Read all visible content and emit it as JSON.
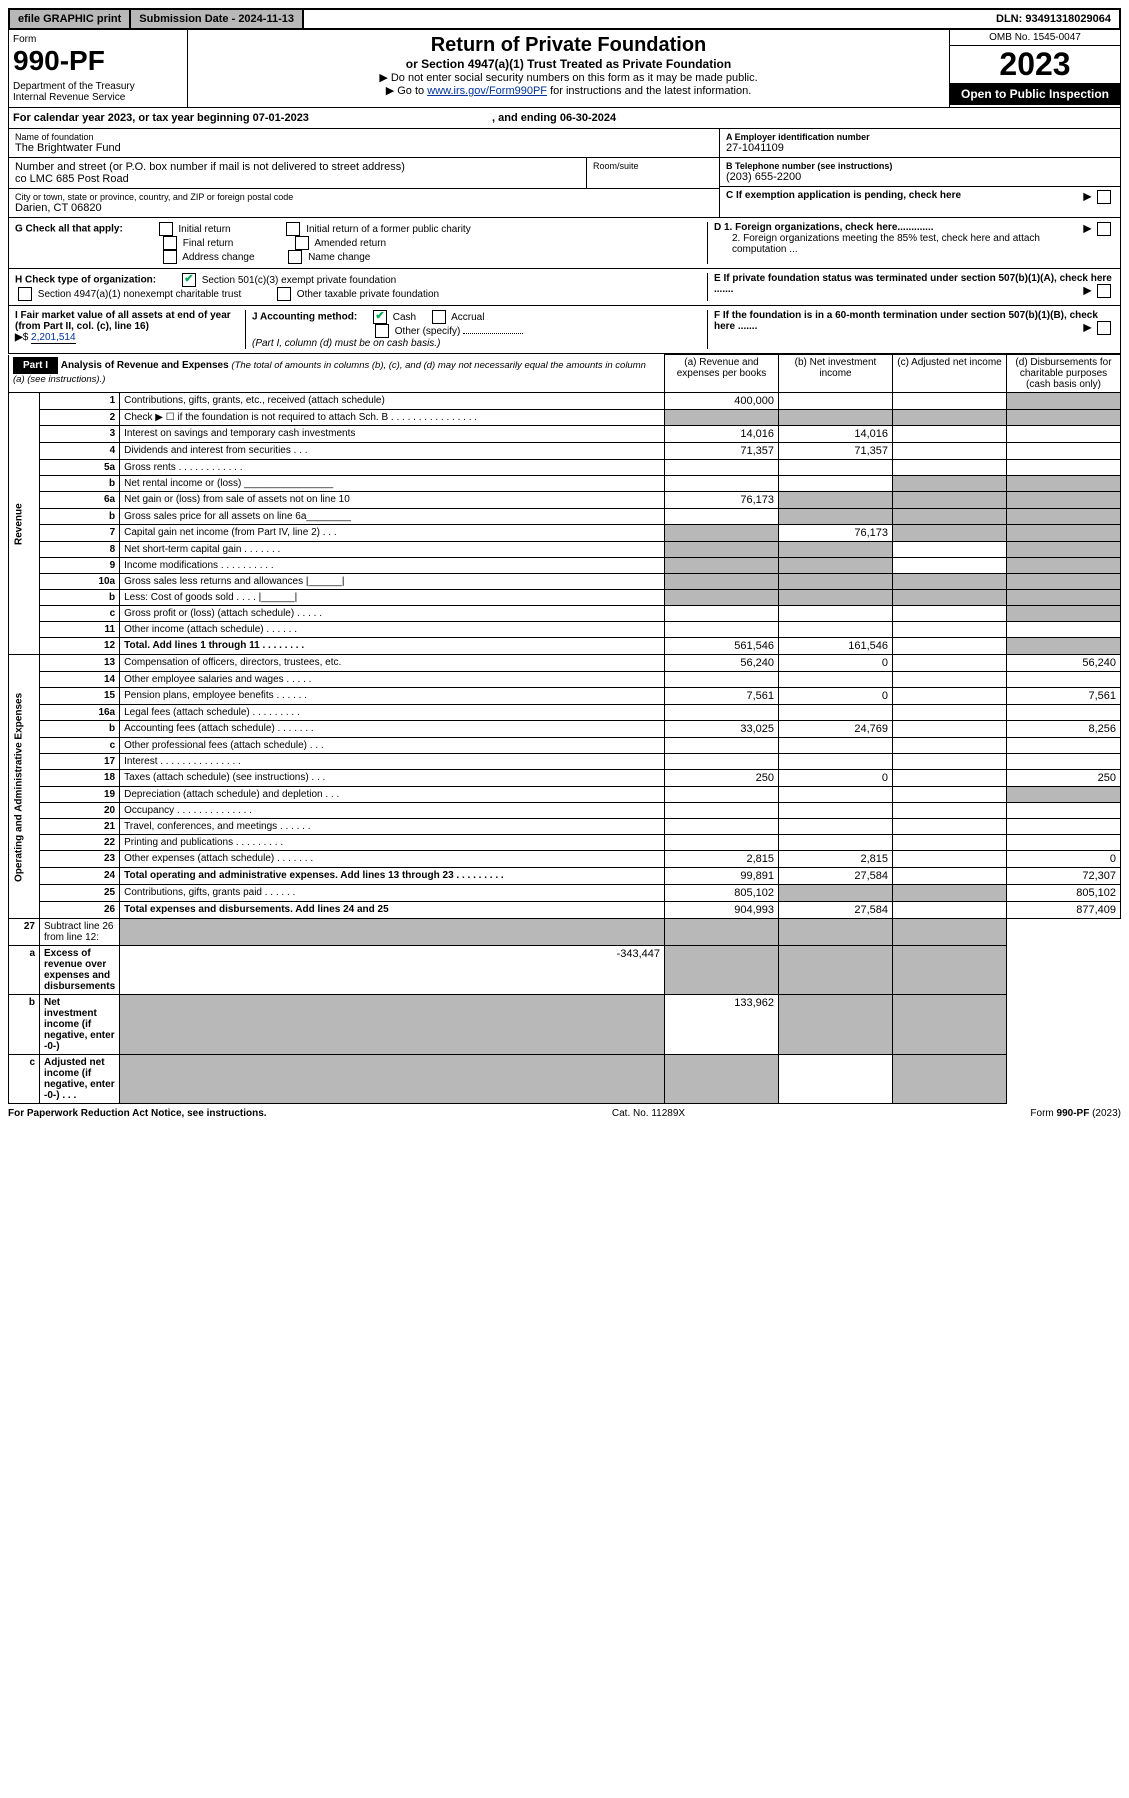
{
  "topbar": {
    "efile": "efile GRAPHIC print",
    "submission": "Submission Date - 2024-11-13",
    "dln": "DLN: 93491318029064"
  },
  "header": {
    "form_label": "Form",
    "form_number": "990-PF",
    "dept": "Department of the Treasury\nInternal Revenue Service",
    "title": "Return of Private Foundation",
    "subtitle": "or Section 4947(a)(1) Trust Treated as Private Foundation",
    "instr1": "▶ Do not enter social security numbers on this form as it may be made public.",
    "instr2_pre": "▶ Go to ",
    "instr2_link": "www.irs.gov/Form990PF",
    "instr2_post": " for instructions and the latest information.",
    "omb": "OMB No. 1545-0047",
    "year": "2023",
    "open": "Open to Public Inspection"
  },
  "calendar": {
    "text_pre": "For calendar year 2023, or tax year beginning ",
    "begin": "07-01-2023",
    "text_mid": " , and ending ",
    "end": "06-30-2024"
  },
  "foundation": {
    "name_lbl": "Name of foundation",
    "name": "The Brightwater Fund",
    "addr_lbl": "Number and street (or P.O. box number if mail is not delivered to street address)",
    "addr": "co LMC 685 Post Road",
    "room_lbl": "Room/suite",
    "city_lbl": "City or town, state or province, country, and ZIP or foreign postal code",
    "city": "Darien, CT  06820",
    "ein_lbl": "A Employer identification number",
    "ein": "27-1041109",
    "phone_lbl": "B Telephone number (see instructions)",
    "phone": "(203) 655-2200",
    "c_lbl": "C If exemption application is pending, check here",
    "d1": "D 1. Foreign organizations, check here.............",
    "d2": "2. Foreign organizations meeting the 85% test, check here and attach computation ...",
    "e_lbl": "E  If private foundation status was terminated under section 507(b)(1)(A), check here .......",
    "f_lbl": "F  If the foundation is in a 60-month termination under section 507(b)(1)(B), check here ......."
  },
  "checks": {
    "g_lbl": "G Check all that apply:",
    "g_opts": [
      "Initial return",
      "Final return",
      "Address change",
      "Initial return of a former public charity",
      "Amended return",
      "Name change"
    ],
    "h_lbl": "H Check type of organization:",
    "h1": "Section 501(c)(3) exempt private foundation",
    "h2": "Section 4947(a)(1) nonexempt charitable trust",
    "h3": "Other taxable private foundation",
    "i_lbl": "I Fair market value of all assets at end of year (from Part II, col. (c), line 16)",
    "i_val": "2,201,514",
    "j_lbl": "J Accounting method:",
    "j_cash": "Cash",
    "j_accrual": "Accrual",
    "j_other": "Other (specify)",
    "j_note": "(Part I, column (d) must be on cash basis.)"
  },
  "part1": {
    "label": "Part I",
    "title": "Analysis of Revenue and Expenses",
    "subtitle": "(The total of amounts in columns (b), (c), and (d) may not necessarily equal the amounts in column (a) (see instructions).)",
    "cols": {
      "a": "(a)   Revenue and expenses per books",
      "b": "(b)   Net investment income",
      "c": "(c)   Adjusted net income",
      "d": "(d)   Disbursements for charitable purposes (cash basis only)"
    }
  },
  "revenue_label": "Revenue",
  "expenses_label": "Operating and Administrative Expenses",
  "rows": [
    {
      "ln": "1",
      "lbl": "Contributions, gifts, grants, etc., received (attach schedule)",
      "a": "400,000",
      "d_shade": true
    },
    {
      "ln": "2",
      "lbl": "Check ▶ ☐ if the foundation is not required to attach Sch. B   .  .  .  .  .  .  .  .  .  .  .  .  .  .  .  .",
      "all_shade": true
    },
    {
      "ln": "3",
      "lbl": "Interest on savings and temporary cash investments",
      "a": "14,016",
      "b": "14,016"
    },
    {
      "ln": "4",
      "lbl": "Dividends and interest from securities   .   .   .",
      "a": "71,357",
      "b": "71,357"
    },
    {
      "ln": "5a",
      "lbl": "Gross rents   .   .   .   .   .   .   .   .   .   .   .   ."
    },
    {
      "ln": "b",
      "lbl": "Net rental income or (loss) ________________",
      "cd_shade": true
    },
    {
      "ln": "6a",
      "lbl": "Net gain or (loss) from sale of assets not on line 10",
      "a": "76,173",
      "bcd_shade": true
    },
    {
      "ln": "b",
      "lbl": "Gross sales price for all assets on line 6a________",
      "bcd_shade": true
    },
    {
      "ln": "7",
      "lbl": "Capital gain net income (from Part IV, line 2)   .   .   .",
      "a_shade": true,
      "b": "76,173",
      "cd_shade": true
    },
    {
      "ln": "8",
      "lbl": "Net short-term capital gain   .   .   .   .   .   .   .",
      "ab_shade": true,
      "d_shade": true
    },
    {
      "ln": "9",
      "lbl": "Income modifications .   .   .   .   .   .   .   .   .   .",
      "ab_shade": true,
      "d_shade": true
    },
    {
      "ln": "10a",
      "lbl": "Gross sales less returns and allowances  |______|",
      "all_shade": true
    },
    {
      "ln": "b",
      "lbl": "Less: Cost of goods sold   .   .   .   .   |______|",
      "all_shade": true
    },
    {
      "ln": "c",
      "lbl": "Gross profit or (loss) (attach schedule)   .   .   .   .   .",
      "d_shade": true
    },
    {
      "ln": "11",
      "lbl": "Other income (attach schedule)   .   .   .   .   .   ."
    },
    {
      "ln": "12",
      "lbl": "Total. Add lines 1 through 11   .   .   .   .   .   .   .   .",
      "bold": true,
      "a": "561,546",
      "b": "161,546",
      "d_shade": true
    }
  ],
  "exp_rows": [
    {
      "ln": "13",
      "lbl": "Compensation of officers, directors, trustees, etc.",
      "a": "56,240",
      "b": "0",
      "d": "56,240"
    },
    {
      "ln": "14",
      "lbl": "Other employee salaries and wages   .   .   .   .   ."
    },
    {
      "ln": "15",
      "lbl": "Pension plans, employee benefits   .   .   .   .   .   .",
      "a": "7,561",
      "b": "0",
      "d": "7,561"
    },
    {
      "ln": "16a",
      "lbl": "Legal fees (attach schedule) .   .   .   .   .   .   .   .   ."
    },
    {
      "ln": "b",
      "lbl": "Accounting fees (attach schedule) .   .   .   .   .   .   .",
      "a": "33,025",
      "b": "24,769",
      "d": "8,256"
    },
    {
      "ln": "c",
      "lbl": "Other professional fees (attach schedule)   .   .   ."
    },
    {
      "ln": "17",
      "lbl": "Interest  .   .   .   .   .   .   .   .   .   .   .   .   .   .   ."
    },
    {
      "ln": "18",
      "lbl": "Taxes (attach schedule) (see instructions)   .   .   .",
      "a": "250",
      "b": "0",
      "d": "250"
    },
    {
      "ln": "19",
      "lbl": "Depreciation (attach schedule) and depletion   .   .   .",
      "d_shade": true
    },
    {
      "ln": "20",
      "lbl": "Occupancy .   .   .   .   .   .   .   .   .   .   .   .   .   ."
    },
    {
      "ln": "21",
      "lbl": "Travel, conferences, and meetings .   .   .   .   .   ."
    },
    {
      "ln": "22",
      "lbl": "Printing and publications .   .   .   .   .   .   .   .   ."
    },
    {
      "ln": "23",
      "lbl": "Other expenses (attach schedule) .   .   .   .   .   .   .",
      "a": "2,815",
      "b": "2,815",
      "d": "0"
    },
    {
      "ln": "24",
      "lbl": "Total operating and administrative expenses. Add lines 13 through 23   .   .   .   .   .   .   .   .   .",
      "bold": true,
      "a": "99,891",
      "b": "27,584",
      "d": "72,307"
    },
    {
      "ln": "25",
      "lbl": "Contributions, gifts, grants paid   .   .   .   .   .   .",
      "a": "805,102",
      "bc_shade": true,
      "d": "805,102"
    },
    {
      "ln": "26",
      "lbl": "Total expenses and disbursements. Add lines 24 and 25",
      "bold": true,
      "a": "904,993",
      "b": "27,584",
      "d": "877,409"
    }
  ],
  "sub_rows": [
    {
      "ln": "27",
      "lbl": "Subtract line 26 from line 12:",
      "all_shade": true
    },
    {
      "ln": "a",
      "lbl": "Excess of revenue over expenses and disbursements",
      "bold": true,
      "a": "-343,447",
      "bcd_shade": true
    },
    {
      "ln": "b",
      "lbl": "Net investment income (if negative, enter -0-)",
      "bold": true,
      "a_shade": true,
      "b": "133,962",
      "cd_shade": true
    },
    {
      "ln": "c",
      "lbl": "Adjusted net income (if negative, enter -0-)   .   .   .",
      "bold": true,
      "ab_shade": true,
      "d_shade": true
    }
  ],
  "footer": {
    "left": "For Paperwork Reduction Act Notice, see instructions.",
    "center": "Cat. No. 11289X",
    "right": "Form 990-PF (2023)"
  }
}
